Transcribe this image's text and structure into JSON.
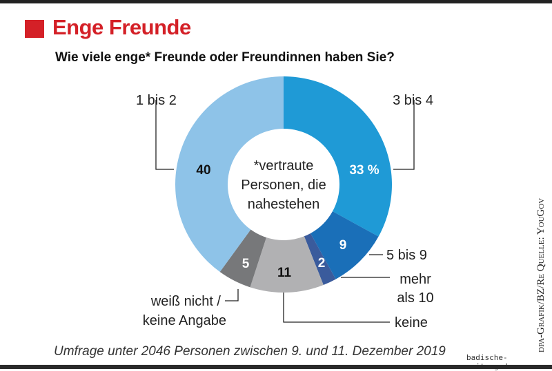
{
  "title": "Enge Freunde",
  "subtitle": "Wie viele enge* Freunde oder Freundinnen haben Sie?",
  "footnote": "Umfrage unter 2046 Personen zwischen 9. und 11. Dezember 2019",
  "credit": "dpa-Grafik/BZ/Re   Quelle: YouGov",
  "site": "badische-zeitung.de",
  "chart_data": {
    "type": "pie",
    "style": "donut",
    "center_text": [
      "*vertraute",
      "Personen, die",
      "nahestehen"
    ],
    "unit": "%",
    "slices": [
      {
        "label": "3 bis 4",
        "value": 33,
        "value_label": "33 %",
        "color": "#1f9ad6",
        "text_color": "#ffffff"
      },
      {
        "label": "5 bis 9",
        "value": 9,
        "value_label": "9",
        "color": "#1a6fb8",
        "text_color": "#ffffff"
      },
      {
        "label": "mehr als 10",
        "value": 2,
        "value_label": "2",
        "color": "#3a5b9c",
        "text_color": "#ffffff"
      },
      {
        "label": "keine",
        "value": 11,
        "value_label": "11",
        "color": "#b1b1b3",
        "text_color": "#111111"
      },
      {
        "label": "weiß nicht / keine Angabe",
        "value": 5,
        "value_label": "5",
        "color": "#77787a",
        "text_color": "#ffffff"
      },
      {
        "label": "1 bis 2",
        "value": 40,
        "value_label": "40",
        "color": "#8ec3e8",
        "text_color": "#111111"
      }
    ]
  }
}
